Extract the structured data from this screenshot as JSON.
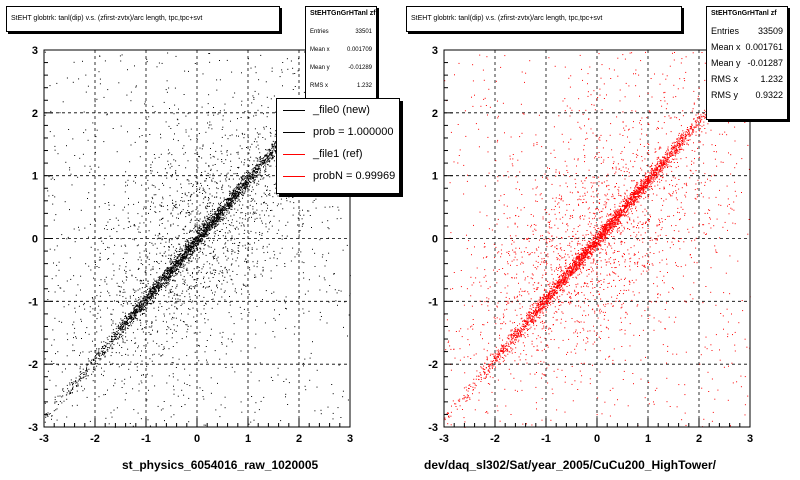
{
  "colors": {
    "black": "#000000",
    "red": "#ff0000",
    "grid": "#000000",
    "frame_bg": "#ffffff"
  },
  "panels": [
    {
      "title": "StEHT globtrk: tanl(dip) v.s. (zfirst-zvtx)/arc length, tpc,tpc+svt",
      "stats": {
        "name": "StEHTGnGrHTanl zf",
        "rows": [
          {
            "label": "Entries",
            "value": "33501"
          },
          {
            "label": "Mean x",
            "value": "0.001709"
          },
          {
            "label": "Mean y",
            "value": "-0.01289"
          },
          {
            "label": "RMS x",
            "value": "1.232"
          }
        ]
      },
      "legend": [
        {
          "label": "_file0 (new)",
          "color": "#000000"
        },
        {
          "label": "prob = 1.000000",
          "color": "#000000"
        },
        {
          "label": "_file1 (ref)",
          "color": "#ff0000"
        },
        {
          "label": "probN = 0.99969",
          "color": "#ff0000"
        }
      ],
      "xlabel": "st_physics_6054016_raw_1020005"
    },
    {
      "title": "StEHT globtrk: tanl(dip) v.s. (zfirst-zvtx)/arc length, tpc,tpc+svt",
      "stats": {
        "name": "StEHTGnGrHTanl zf",
        "rows": [
          {
            "label": "Entries",
            "value": "33509"
          },
          {
            "label": "Mean x",
            "value": "0.001761"
          },
          {
            "label": "Mean y",
            "value": "-0.01287"
          },
          {
            "label": "RMS x",
            "value": "1.232"
          },
          {
            "label": "RMS y",
            "value": "0.9322"
          }
        ]
      },
      "xlabel": "dev/daq_sl302/Sat/year_2005/CuCu200_HighTower/"
    }
  ],
  "chart_data": [
    {
      "type": "scatter",
      "title": "StEHT globtrk: tanl(dip) v.s. (zfirst-zvtx)/arc length, tpc,tpc+svt",
      "xlabel": "st_physics_6054016_raw_1020005",
      "ylabel": "",
      "xlim": [
        -3,
        3
      ],
      "ylim": [
        -3,
        3
      ],
      "x_ticks": [
        "-3",
        "-2",
        "-1",
        "0",
        "1",
        "2",
        "3"
      ],
      "y_ticks": [
        "-3",
        "-2",
        "-1",
        "0",
        "1",
        "2",
        "3"
      ],
      "grid": true,
      "point_color": "#000000",
      "series": [
        {
          "name": "_file0 (new)",
          "entries": 33501,
          "mean_x": 0.001709,
          "mean_y": -0.01289,
          "rms_x": 1.232
        }
      ]
    },
    {
      "type": "scatter",
      "title": "StEHT globtrk: tanl(dip) v.s. (zfirst-zvtx)/arc length, tpc,tpc+svt",
      "xlabel": "dev/daq_sl302/Sat/year_2005/CuCu200_HighTower/",
      "ylabel": "",
      "xlim": [
        -3,
        3
      ],
      "ylim": [
        -3,
        3
      ],
      "x_ticks": [
        "-3",
        "-2",
        "-1",
        "0",
        "1",
        "2",
        "3"
      ],
      "y_ticks": [
        "-3",
        "-2",
        "-1",
        "0",
        "1",
        "2",
        "3"
      ],
      "grid": true,
      "point_color": "#ff0000",
      "series": [
        {
          "name": "_file1 (ref)",
          "entries": 33509,
          "mean_x": 0.001761,
          "mean_y": -0.01287,
          "rms_x": 1.232,
          "rms_y": 0.9322
        }
      ]
    }
  ]
}
